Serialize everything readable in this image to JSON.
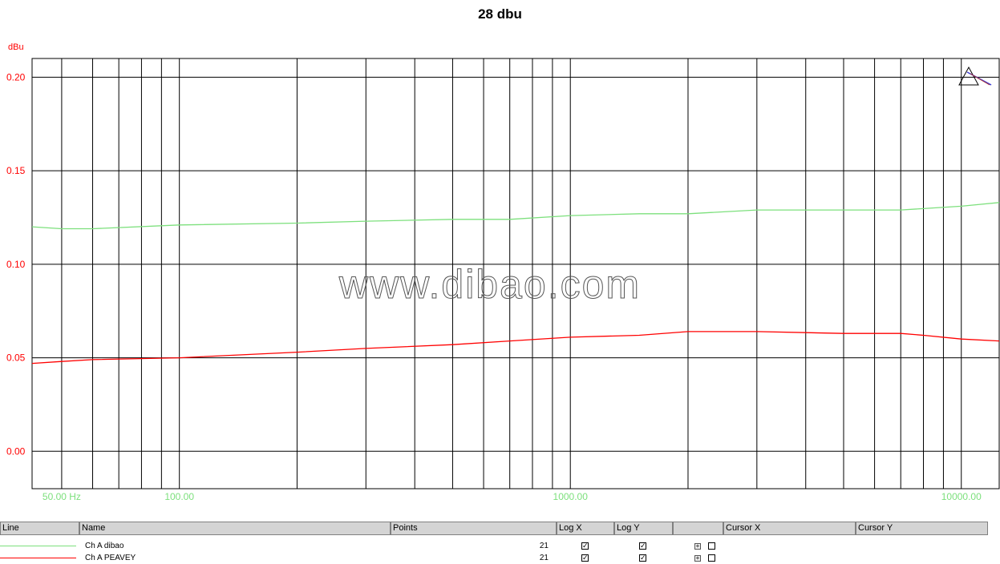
{
  "chart_data": {
    "type": "line",
    "title": "28 dbu",
    "ylabel": "dBu",
    "xscale": "log",
    "xlim": [
      42,
      12500
    ],
    "ylim": [
      -0.02,
      0.21
    ],
    "y_ticks": [
      0.2,
      0.15,
      0.1,
      0.05,
      0.0
    ],
    "y_tick_labels": [
      "0.20",
      "0.15",
      "0.10",
      "0.05",
      "0.00"
    ],
    "x_tick_labels": [
      {
        "x": 50,
        "label": "50.00 Hz"
      },
      {
        "x": 100,
        "label": "100.00"
      },
      {
        "x": 1000,
        "label": "1000.00"
      },
      {
        "x": 10000,
        "label": "10000.00"
      }
    ],
    "grid": true,
    "annotation": "www.dibao.com",
    "series": [
      {
        "name": "Ch A dibao",
        "color": "#7de07d",
        "x": [
          42,
          50,
          60,
          100,
          200,
          300,
          500,
          700,
          1000,
          1500,
          2000,
          3000,
          5000,
          7000,
          10000,
          12500
        ],
        "y": [
          0.12,
          0.119,
          0.119,
          0.121,
          0.122,
          0.123,
          0.124,
          0.124,
          0.126,
          0.127,
          0.127,
          0.129,
          0.129,
          0.129,
          0.131,
          0.133
        ]
      },
      {
        "name": "Ch A PEAVEY",
        "color": "#ff0000",
        "x": [
          42,
          50,
          60,
          100,
          200,
          300,
          500,
          700,
          1000,
          1500,
          2000,
          3000,
          5000,
          7000,
          8000,
          10000,
          12500
        ],
        "y": [
          0.047,
          0.048,
          0.049,
          0.05,
          0.053,
          0.055,
          0.057,
          0.059,
          0.061,
          0.062,
          0.064,
          0.064,
          0.063,
          0.063,
          0.062,
          0.06,
          0.059
        ]
      }
    ]
  },
  "legend": {
    "headers": {
      "line": "Line",
      "name": "Name",
      "points": "Points",
      "logx": "Log X",
      "logy": "Log Y",
      "blank": "",
      "cursorx": "Cursor X",
      "cursory": "Cursor Y"
    },
    "rows": [
      {
        "name": "Ch A dibao",
        "points": "21",
        "logx": "✓",
        "logy": "✓",
        "expand": "+",
        "color": "#7de07d"
      },
      {
        "name": "Ch A PEAVEY",
        "points": "21",
        "logx": "✓",
        "logy": "✓",
        "expand": "+",
        "color": "#ff0000"
      }
    ]
  }
}
